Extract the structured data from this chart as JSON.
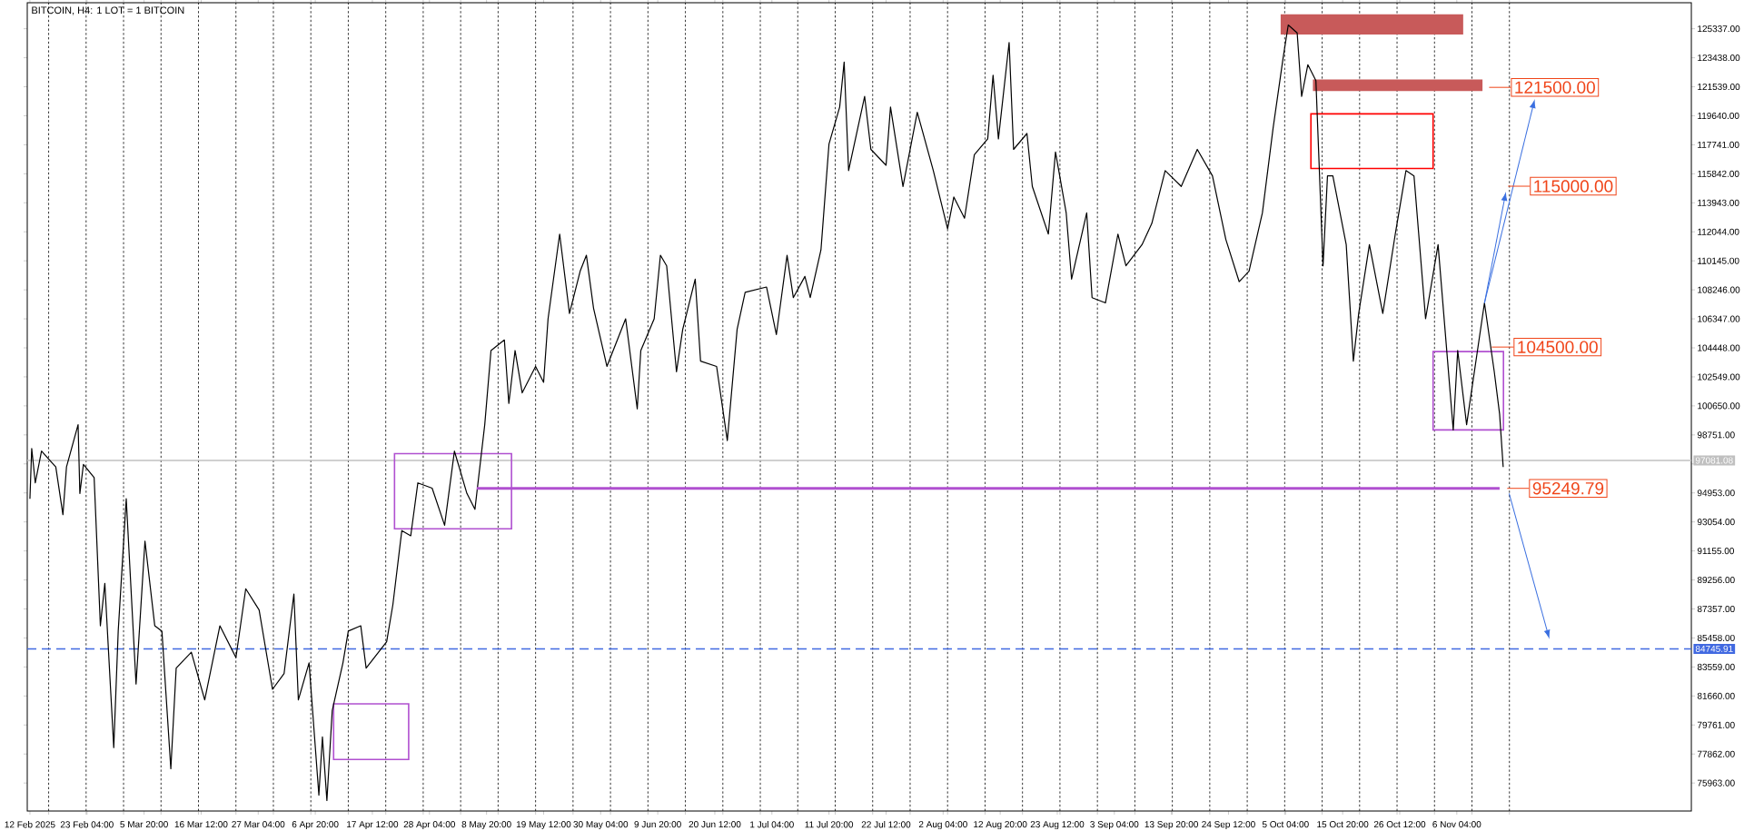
{
  "chart_data": {
    "type": "line",
    "title": "BITCOIN, H4:  1 LOT = 1 BITCOIN",
    "x": [
      "2025-02-12T12:00",
      "2025-02-12T20:00",
      "2025-02-13T12:00",
      "2025-02-14T16:00",
      "2025-02-17T08:00",
      "2025-02-18T16:00",
      "2025-02-19T08:00",
      "2025-02-21T12:00",
      "2025-02-21T20:00",
      "2025-02-22T12:00",
      "2025-02-24T12:00",
      "2025-02-25T16:00",
      "2025-02-26T12:00",
      "2025-02-28T04:00",
      "2025-03-01T00:00",
      "2025-03-02T12:00",
      "2025-03-04T08:00",
      "2025-03-06T00:00",
      "2025-03-07T20:00",
      "2025-03-09T04:00",
      "2025-03-10T20:00",
      "2025-03-11T20:00",
      "2025-03-14T16:00",
      "2025-03-17T04:00",
      "2025-03-20T00:00",
      "2025-03-23T00:00",
      "2025-03-24T20:00",
      "2025-03-27T08:00",
      "2025-03-29T20:00",
      "2025-04-01T00:00",
      "2025-04-02T20:00",
      "2025-04-03T16:00",
      "2025-04-05T16:00",
      "2025-04-07T12:00",
      "2025-04-08T04:00",
      "2025-04-09T00:00",
      "2025-04-10T00:00",
      "2025-04-12T00:00",
      "2025-04-13T00:00",
      "2025-04-15T08:00",
      "2025-04-16T08:00",
      "2025-04-20T04:00",
      "2025-04-21T08:00",
      "2025-04-23T00:00",
      "2025-04-24T16:00",
      "2025-04-26T00:00",
      "2025-04-28T16:00",
      "2025-05-01T00:00",
      "2025-05-02T20:00",
      "2025-05-05T04:00",
      "2025-05-06T16:00",
      "2025-05-08T12:00",
      "2025-05-09T16:00",
      "2025-05-12T04:00",
      "2025-05-13T00:00",
      "2025-05-14T04:00",
      "2025-05-15T12:00",
      "2025-05-18T00:00",
      "2025-05-19T12:00",
      "2025-05-20T08:00",
      "2025-05-22T12:00",
      "2025-05-24T08:00",
      "2025-05-26T08:00",
      "2025-05-27T12:00",
      "2025-05-28T20:00",
      "2025-05-31T08:00",
      "2025-06-03T20:00",
      "2025-06-06T00:00",
      "2025-06-06T16:00",
      "2025-06-09T04:00",
      "2025-06-10T08:00",
      "2025-06-11T12:00",
      "2025-06-13T08:00",
      "2025-06-14T12:00",
      "2025-06-16T20:00",
      "2025-06-17T20:00",
      "2025-06-20T20:00",
      "2025-06-22T20:00",
      "2025-06-24T16:00",
      "2025-06-26T04:00",
      "2025-06-30T04:00",
      "2025-07-02T00:00",
      "2025-07-04T00:00",
      "2025-07-05T04:00",
      "2025-07-07T08:00",
      "2025-07-08T08:00",
      "2025-07-10T08:00",
      "2025-07-11T20:00",
      "2025-07-13T20:00",
      "2025-07-14T16:00",
      "2025-07-15T12:00",
      "2025-07-18T12:00",
      "2025-07-19T16:00",
      "2025-07-22T12:00",
      "2025-07-23T08:00",
      "2025-07-25T16:00",
      "2025-07-28T08:00",
      "2025-07-31T08:00",
      "2025-08-03T00:00",
      "2025-08-04T04:00",
      "2025-08-06T04:00",
      "2025-08-08T00:00",
      "2025-08-10T12:00",
      "2025-08-11T12:00",
      "2025-08-12T12:00",
      "2025-08-14T12:00",
      "2025-08-15T08:00",
      "2025-08-17T20:00",
      "2025-08-18T20:00",
      "2025-08-21T20:00",
      "2025-08-23T04:00",
      "2025-08-25T04:00",
      "2025-08-26T04:00",
      "2025-08-29T00:00",
      "2025-08-30T00:00",
      "2025-09-01T12:00",
      "2025-09-03T20:00",
      "2025-09-05T08:00",
      "2025-09-08T08:00",
      "2025-09-10T04:00",
      "2025-09-12T16:00",
      "2025-09-15T16:00",
      "2025-09-18T16:00",
      "2025-09-21T12:00",
      "2025-09-24T00:00",
      "2025-09-26T12:00",
      "2025-09-28T08:00",
      "2025-09-30T20:00",
      "2025-10-02T20:00",
      "2025-10-04T16:00",
      "2025-10-05T16:00",
      "2025-10-07T08:00",
      "2025-10-08T04:00",
      "2025-10-09T08:00",
      "2025-10-10T20:00",
      "2025-10-12T04:00",
      "2025-10-13T00:00",
      "2025-10-14T00:00",
      "2025-10-16T12:00",
      "2025-10-17T20:00",
      "2025-10-18T20:00",
      "2025-10-20T20:00",
      "2025-10-23T08:00",
      "2025-10-25T16:00",
      "2025-10-27T16:00",
      "2025-10-29T04:00",
      "2025-10-31T08:00",
      "2025-11-02T16:00",
      "2025-11-05T12:00",
      "2025-11-06T08:00",
      "2025-11-08T00:00",
      "2025-11-11T08:00",
      "2025-11-13T04:00",
      "2025-11-14T04:00",
      "2025-11-14T20:00"
    ],
    "series": [
      {
        "color": "#000000",
        "values": [
          94570,
          97862,
          95609,
          97688,
          96649,
          93530,
          96649,
          99421,
          94916,
          96822,
          95956,
          86254,
          89026,
          78284,
          85907,
          94570,
          82442,
          91798,
          86254,
          85907,
          76898,
          83482,
          84521,
          81403,
          86254,
          84175,
          88679,
          87293,
          82096,
          83135,
          88333,
          81403,
          83828,
          75166,
          78977,
          74819,
          80710,
          83828,
          85907,
          86254,
          83482,
          85214,
          87640,
          92491,
          92144,
          95609,
          95263,
          92837,
          97688,
          94916,
          93877,
          99421,
          104272,
          104965,
          100807,
          104272,
          101500,
          103232,
          102193,
          106351,
          111895,
          106697,
          109469,
          110509,
          107044,
          103232,
          106351,
          100460,
          104272,
          106351,
          110509,
          109816,
          102886,
          105658,
          108950,
          103579,
          103232,
          98381,
          105658,
          108083,
          108430,
          105311,
          110509,
          107737,
          109123,
          107737,
          110855,
          117785,
          120211,
          123156,
          116053,
          120904,
          117439,
          116399,
          120211,
          115013,
          119864,
          116053,
          112241,
          114320,
          112934,
          117092,
          118132,
          122290,
          118132,
          124438,
          117439,
          118478,
          115013,
          111895,
          117266,
          113281,
          108950,
          113281,
          107737,
          107390,
          111895,
          109816,
          111202,
          112588,
          116053,
          115013,
          117439,
          115706,
          111548,
          108776,
          109469,
          113281,
          118825,
          123329,
          125582,
          125062,
          120904,
          122983,
          121943,
          109816,
          115706,
          115706,
          111202,
          103579,
          106697,
          111202,
          106697,
          111895,
          116053,
          115706,
          106351,
          111202,
          99074,
          104272,
          99421,
          107390,
          102886,
          100114,
          96649
        ]
      },
      {
        "type": "line",
        "color": "#b050d0",
        "x": [
          "2025-05-07T00:00",
          "2025-11-14T04:00"
        ],
        "values": [
          95249.79,
          95249.79
        ]
      }
    ],
    "xlim": [
      "2025-02-12T00:00",
      "2025-12-20T00:00"
    ],
    "ylim": [
      74130,
      127040
    ],
    "xticks": [
      {
        "value": "2025-02-12T12:00",
        "label": "12 Feb 2025"
      },
      {
        "value": "2025-02-23T04:00",
        "label": "23 Feb 04:00"
      },
      {
        "value": "2025-03-05T20:00",
        "label": "5 Mar 20:00"
      },
      {
        "value": "2025-03-16T12:00",
        "label": "16 Mar 12:00"
      },
      {
        "value": "2025-03-27T04:00",
        "label": "27 Mar 04:00"
      },
      {
        "value": "2025-04-06T20:00",
        "label": "6 Apr 20:00"
      },
      {
        "value": "2025-04-17T12:00",
        "label": "17 Apr 12:00"
      },
      {
        "value": "2025-04-28T04:00",
        "label": "28 Apr 04:00"
      },
      {
        "value": "2025-05-08T20:00",
        "label": "8 May 20:00"
      },
      {
        "value": "2025-05-19T12:00",
        "label": "19 May 12:00"
      },
      {
        "value": "2025-05-30T04:00",
        "label": "30 May 04:00"
      },
      {
        "value": "2025-06-09T20:00",
        "label": "9 Jun 20:00"
      },
      {
        "value": "2025-06-20T12:00",
        "label": "20 Jun 12:00"
      },
      {
        "value": "2025-07-01T04:00",
        "label": "1 Jul 04:00"
      },
      {
        "value": "2025-07-11T20:00",
        "label": "11 Jul 20:00"
      },
      {
        "value": "2025-07-22T12:00",
        "label": "22 Jul 12:00"
      },
      {
        "value": "2025-08-02T04:00",
        "label": "2 Aug 04:00"
      },
      {
        "value": "2025-08-12T20:00",
        "label": "12 Aug 20:00"
      },
      {
        "value": "2025-08-23T12:00",
        "label": "23 Aug 12:00"
      },
      {
        "value": "2025-09-03T04:00",
        "label": "3 Sep 04:00"
      },
      {
        "value": "2025-09-13T20:00",
        "label": "13 Sep 20:00"
      },
      {
        "value": "2025-09-24T12:00",
        "label": "24 Sep 12:00"
      },
      {
        "value": "2025-10-05T04:00",
        "label": "5 Oct 04:00"
      },
      {
        "value": "2025-10-15T20:00",
        "label": "15 Oct 20:00"
      },
      {
        "value": "2025-10-26T12:00",
        "label": "26 Oct 12:00"
      },
      {
        "value": "2025-11-06T04:00",
        "label": "6 Nov 04:00"
      },
      {
        "value": "2025-02-16",
        "label": null
      },
      {
        "value": "2025-02-23",
        "label": null
      },
      {
        "value": "2025-03-02",
        "label": null
      },
      {
        "value": "2025-03-09",
        "label": null
      },
      {
        "value": "2025-03-16",
        "label": null
      },
      {
        "value": "2025-03-23",
        "label": null
      },
      {
        "value": "2025-03-30",
        "label": null
      },
      {
        "value": "2025-04-06",
        "label": null
      },
      {
        "value": "2025-04-13",
        "label": null
      },
      {
        "value": "2025-04-20",
        "label": null
      },
      {
        "value": "2025-04-27",
        "label": null
      },
      {
        "value": "2025-05-04",
        "label": null
      },
      {
        "value": "2025-05-11",
        "label": null
      },
      {
        "value": "2025-05-18",
        "label": null
      },
      {
        "value": "2025-05-25",
        "label": null
      },
      {
        "value": "2025-06-01",
        "label": null
      },
      {
        "value": "2025-06-08",
        "label": null
      },
      {
        "value": "2025-06-15",
        "label": null
      },
      {
        "value": "2025-06-22",
        "label": null
      },
      {
        "value": "2025-06-29",
        "label": null
      },
      {
        "value": "2025-07-06",
        "label": null
      },
      {
        "value": "2025-07-13",
        "label": null
      },
      {
        "value": "2025-07-20",
        "label": null
      },
      {
        "value": "2025-07-27",
        "label": null
      },
      {
        "value": "2025-08-03",
        "label": null
      },
      {
        "value": "2025-08-10",
        "label": null
      },
      {
        "value": "2025-08-17",
        "label": null
      },
      {
        "value": "2025-08-24",
        "label": null
      },
      {
        "value": "2025-08-31",
        "label": null
      },
      {
        "value": "2025-09-07",
        "label": null
      },
      {
        "value": "2025-09-14",
        "label": null
      },
      {
        "value": "2025-09-21",
        "label": null
      },
      {
        "value": "2025-09-28",
        "label": null
      },
      {
        "value": "2025-10-05",
        "label": null
      },
      {
        "value": "2025-10-12",
        "label": null
      },
      {
        "value": "2025-10-19",
        "label": null
      },
      {
        "value": "2025-10-26",
        "label": null
      },
      {
        "value": "2025-11-02",
        "label": null
      },
      {
        "value": "2025-11-09",
        "label": null
      },
      {
        "value": "2025-11-16",
        "label": null
      }
    ],
    "yticks": [
      {
        "value": 75963,
        "label": "75963.00"
      },
      {
        "value": 77862,
        "label": "77862.00"
      },
      {
        "value": 79761,
        "label": "79761.00"
      },
      {
        "value": 81660,
        "label": "81660.00"
      },
      {
        "value": 83559,
        "label": "83559.00"
      },
      {
        "value": 85458,
        "label": "85458.00"
      },
      {
        "value": 87357,
        "label": "87357.00"
      },
      {
        "value": 89256,
        "label": "89256.00"
      },
      {
        "value": 91155,
        "label": "91155.00"
      },
      {
        "value": 93054,
        "label": "93054.00"
      },
      {
        "value": 94953,
        "label": "94953.00"
      },
      {
        "value": 96852,
        "label": null
      },
      {
        "value": 98751,
        "label": "98751.00"
      },
      {
        "value": 100650,
        "label": "100650.00"
      },
      {
        "value": 102549,
        "label": "102549.00"
      },
      {
        "value": 104448,
        "label": "104448.00"
      },
      {
        "value": 106347,
        "label": "106347.00"
      },
      {
        "value": 108246,
        "label": "108246.00"
      },
      {
        "value": 110145,
        "label": "110145.00"
      },
      {
        "value": 112044,
        "label": "112044.00"
      },
      {
        "value": 113943,
        "label": "113943.00"
      },
      {
        "value": 115842,
        "label": "115842.00"
      },
      {
        "value": 117741,
        "label": "117741.00"
      },
      {
        "value": 119640,
        "label": "119640.00"
      },
      {
        "value": 121539,
        "label": "121539.00"
      },
      {
        "value": 123438,
        "label": "123438.00"
      },
      {
        "value": 125337,
        "label": "125337.00"
      }
    ],
    "grid": "x",
    "ref_lines": [
      {
        "axis": "y",
        "value": 97081.08,
        "label": "97081.08",
        "color": "#c0c0c0",
        "line_style": "solid"
      },
      {
        "axis": "y",
        "value": 84745.91,
        "label": "84745.91",
        "color": "#4169e1",
        "line_style": "dashed"
      }
    ],
    "annotations": [
      {
        "text": "121500.00",
        "x": "2025-11-11T08:00",
        "y": 107390
      },
      "115000.00",
      "104500.00",
      "95249.79"
    ]
  }
}
